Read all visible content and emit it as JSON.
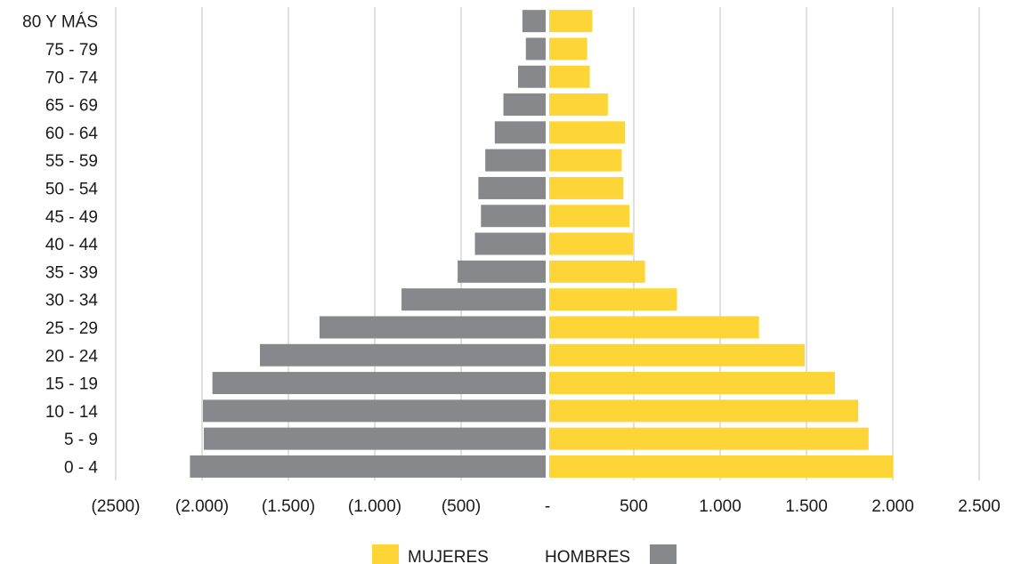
{
  "chart_data": {
    "type": "bar",
    "orientation": "horizontal",
    "title": "",
    "xlabel": "",
    "ylabel": "",
    "categories": [
      "80 Y MÁS",
      "75 - 79",
      "70 - 74",
      "65 - 69",
      "60 - 64",
      "55 - 59",
      "50 - 54",
      "45 - 49",
      "40 - 44",
      "35 - 39",
      "30 - 34",
      "25 - 29",
      "20 - 24",
      "15 - 19",
      "10 - 14",
      "5 - 9",
      "0 - 4"
    ],
    "series": [
      {
        "name": "MUJERES",
        "color": "#fdd537",
        "values": [
          260,
          230,
          245,
          350,
          450,
          430,
          440,
          475,
          495,
          565,
          750,
          1225,
          1490,
          1665,
          1800,
          1860,
          2000
        ]
      },
      {
        "name": "HOMBRES",
        "color": "#87888b",
        "values": [
          -145,
          -125,
          -170,
          -255,
          -305,
          -360,
          -400,
          -385,
          -420,
          -520,
          -845,
          -1320,
          -1665,
          -1940,
          -1995,
          -1990,
          -2070
        ]
      }
    ],
    "xlim": [
      -2500,
      2500
    ],
    "xticks": [
      -2500,
      -2000,
      -1500,
      -1000,
      -500,
      0,
      500,
      1000,
      1500,
      2000,
      2500
    ],
    "xtick_labels": [
      "(2500)",
      "(2.000)",
      "(1.500)",
      "(1.000)",
      "(500)",
      "-",
      "500",
      "1.000",
      "1.500",
      "2.000",
      "2.500"
    ],
    "grid": "vertical",
    "legend": {
      "placement": "bottom-center",
      "items": [
        {
          "label": "MUJERES",
          "color": "#fdd537",
          "swatch_side": "left"
        },
        {
          "label": "HOMBRES",
          "color": "#87888b",
          "swatch_side": "right"
        }
      ]
    }
  }
}
